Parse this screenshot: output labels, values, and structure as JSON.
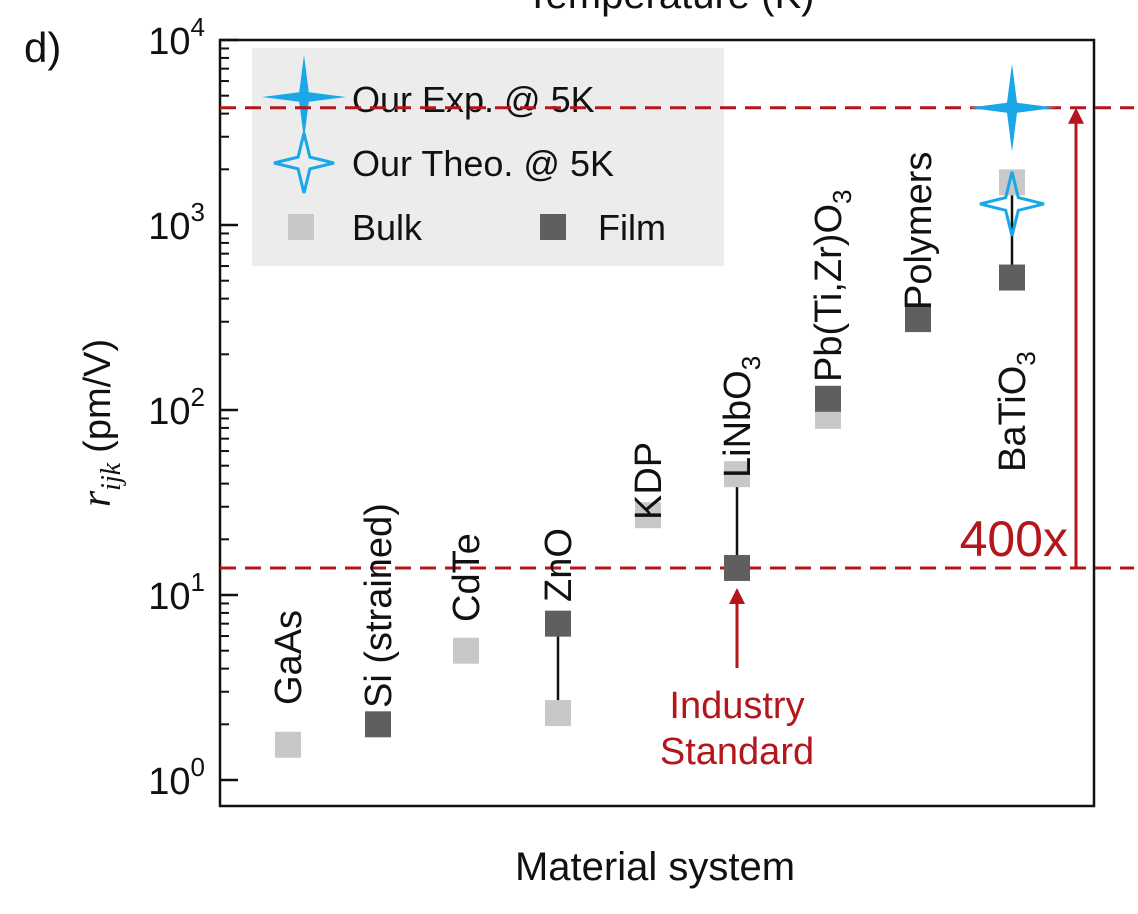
{
  "panel_label": "d)",
  "top_axis_fragment": "Temperature (K)",
  "chart_data": {
    "type": "scatter",
    "title": "",
    "xlabel": "Material system",
    "ylabel_symbol": "r",
    "ylabel_subscript": "ijk",
    "ylabel_unit": "(pm/V)",
    "yscale": "log",
    "ylim": [
      1,
      10000
    ],
    "yticks": [
      {
        "value": 1,
        "base": "10",
        "exp": "0"
      },
      {
        "value": 10,
        "base": "10",
        "exp": "1"
      },
      {
        "value": 100,
        "base": "10",
        "exp": "2"
      },
      {
        "value": 1000,
        "base": "10",
        "exp": "3"
      },
      {
        "value": 10000,
        "base": "10",
        "exp": "4"
      }
    ],
    "legend": {
      "placement": "top-left",
      "entries": [
        {
          "label": "Our Exp. @ 5K",
          "marker": "star-filled"
        },
        {
          "label": "Our Theo. @ 5K",
          "marker": "star-outline"
        },
        {
          "label": "Bulk",
          "marker": "square-light"
        },
        {
          "label": "Film",
          "marker": "square-dark"
        }
      ]
    },
    "materials": [
      {
        "name": "GaAs",
        "bulk": 1.55,
        "film": null
      },
      {
        "name": "Si (strained)",
        "bulk": null,
        "film": 2.0
      },
      {
        "name": "CdTe",
        "bulk": 5.0,
        "film": null
      },
      {
        "name": "ZnO",
        "bulk": 2.3,
        "film": 7.0
      },
      {
        "name": "KDP",
        "bulk": 27,
        "film": null
      },
      {
        "name": "LiNbO3",
        "name_main": "LiNbO",
        "name_sub": "3",
        "bulk": 45,
        "film": 14
      },
      {
        "name": "Pb(Ti,Zr)O3",
        "name_main": "Pb(Ti,Zr)O",
        "name_sub": "3",
        "bulk": 93,
        "film": 115
      },
      {
        "name": "Polymers",
        "bulk": null,
        "film": 310
      },
      {
        "name": "BaTiO3",
        "name_main": "BaTiO",
        "name_sub": "3",
        "bulk": 1700,
        "film": 520,
        "theo": 1300,
        "exp": 4300
      }
    ],
    "reference_lines": {
      "lower": 14,
      "upper": 4300
    },
    "annotations": {
      "ratio_label": "400x",
      "industry_label_line1": "Industry",
      "industry_label_line2": "Standard"
    },
    "colors": {
      "bulk": "#c8c8c8",
      "film": "#5f5f5f",
      "star": "#1aa7e8",
      "annotation": "#b3161b"
    }
  }
}
